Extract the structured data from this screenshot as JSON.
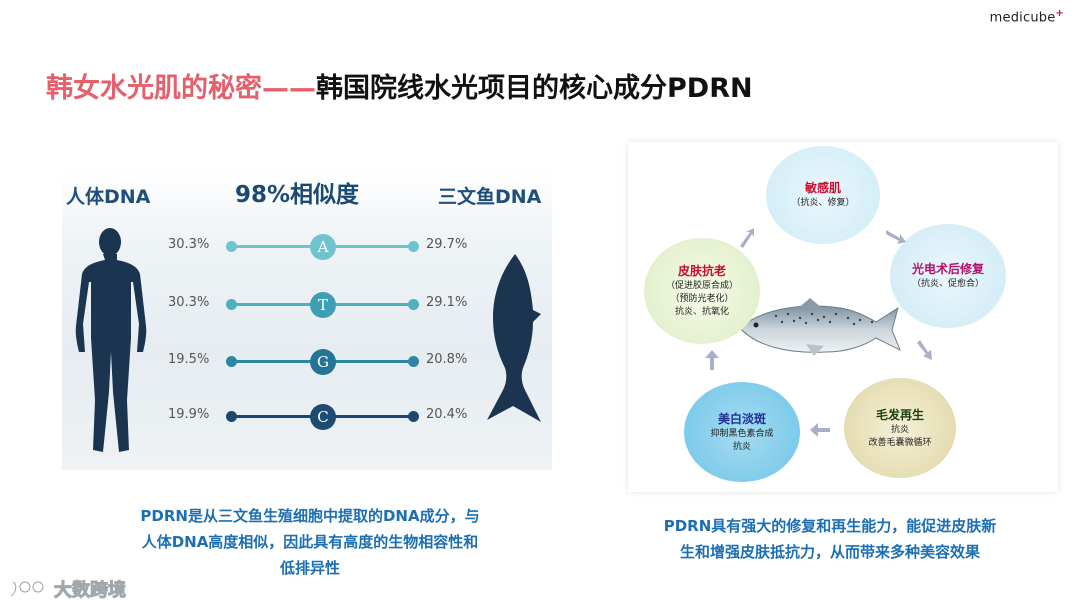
{
  "brand": {
    "logo_text": "medicube",
    "logo_mark": "+"
  },
  "title": {
    "part1": "韩女水光肌的秘密——",
    "part2": "韩国院线水光项目的核心成分PDRN"
  },
  "comparison": {
    "human_label": "人体DNA",
    "fish_label": "三文鱼DNA",
    "similarity_label": "98%相似度",
    "rows": [
      {
        "base": "A",
        "human": "30.3%",
        "fish": "29.7%",
        "color": "#6fc3cf",
        "base_color": "#6fc3cf"
      },
      {
        "base": "T",
        "human": "30.3%",
        "fish": "29.1%",
        "color": "#4fb0c0",
        "base_color": "#3c9fb3"
      },
      {
        "base": "G",
        "human": "19.5%",
        "fish": "20.8%",
        "color": "#2b87a5",
        "base_color": "#237593"
      },
      {
        "base": "C",
        "human": "19.9%",
        "fish": "20.4%",
        "color": "#1c4a6e",
        "base_color": "#1e4b72"
      }
    ],
    "caption_lines": [
      "PDRN是从三文鱼生殖细胞中提取的DNA成分，与",
      "人体DNA高度相似，因此具有高度的生物相容性和",
      "低排异性"
    ]
  },
  "benefits": {
    "items": [
      {
        "title": "敏感肌",
        "sub": [
          "（抗炎、修复）"
        ],
        "title_color": "#c8102e"
      },
      {
        "title": "光电术后修复",
        "sub": [
          "（抗炎、促愈合）"
        ],
        "title_color": "#b4106e"
      },
      {
        "title": "毛发再生",
        "sub": [
          "抗炎",
          "改善毛囊微循环"
        ],
        "title_color": "#1f3f0f"
      },
      {
        "title": "美白淡斑",
        "sub": [
          "抑制黑色素合成",
          "抗炎"
        ],
        "title_color": "#1f2f9a"
      },
      {
        "title": "皮肤抗老",
        "sub": [
          "（促进胶原合成）",
          "（预防光老化）",
          "抗炎、抗氧化"
        ],
        "title_color": "#c8102e"
      }
    ],
    "caption_lines": [
      "PDRN具有强大的修复和再生能力，能促进皮肤新",
      "生和增强皮肤抵抗力，从而带来多种美容效果"
    ]
  },
  "watermark": {
    "text": "大数跨境"
  }
}
